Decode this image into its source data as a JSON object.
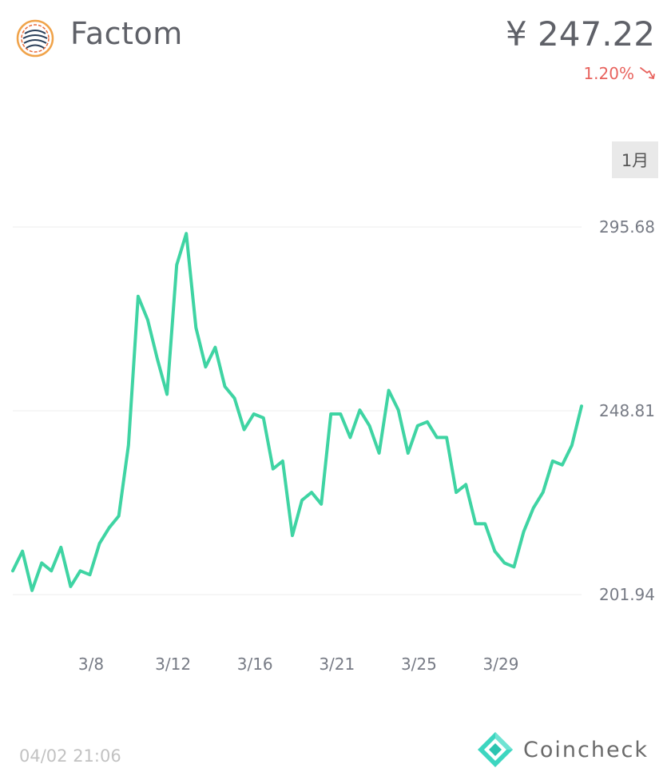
{
  "header": {
    "coin_name": "Factom",
    "price": "¥ 247.22",
    "change": "1.20%"
  },
  "controls": {
    "period_label": "1月"
  },
  "footer": {
    "timestamp": "04/02 21:06",
    "brand": "Coincheck"
  },
  "colors": {
    "line": "#3fd4a3",
    "negative": "#e8635e",
    "text": "#5f6168",
    "brand_teal": "#3dd6c0"
  },
  "icons": {
    "coin_logo": "factom-logo-icon",
    "trend": "arrow-down-right-icon",
    "brand_logo": "coincheck-logo-icon"
  },
  "chart_data": {
    "type": "line",
    "title": "",
    "xlabel": "",
    "ylabel": "",
    "ylim": [
      201.94,
      295.68
    ],
    "y_ticks": [
      "295.68",
      "248.81",
      "201.94"
    ],
    "x_ticks": [
      "3/8",
      "3/12",
      "3/16",
      "3/21",
      "3/25",
      "3/29"
    ],
    "grid": true,
    "series": [
      {
        "name": "",
        "x": [
          0,
          0.5,
          1,
          1.5,
          2,
          2.5,
          3,
          3.5,
          4,
          4.5,
          5,
          5.5,
          6,
          6.5,
          7,
          7.5,
          8,
          8.5,
          9,
          9.5,
          10,
          10.5,
          11,
          11.5,
          12,
          12.5,
          13,
          13.5,
          14,
          14.5,
          15,
          15.5,
          16,
          16.5,
          17,
          17.5,
          18,
          18.5,
          19,
          19.5,
          20,
          20.5,
          21,
          21.5,
          22,
          22.5,
          23,
          23.5,
          24,
          24.5,
          25,
          25.5,
          26,
          26.5,
          27,
          27.5,
          28,
          28.5,
          29,
          29.5
        ],
        "values": [
          208,
          213,
          203,
          210,
          208,
          214,
          204,
          208,
          207,
          215,
          219,
          222,
          240,
          278,
          272,
          262,
          253,
          286,
          294,
          270,
          260,
          265,
          255,
          252,
          244,
          248,
          247,
          234,
          236,
          217,
          226,
          228,
          225,
          248,
          248,
          242,
          249,
          245,
          238,
          254,
          249,
          238,
          245,
          246,
          242,
          242,
          228,
          230,
          220,
          220,
          213,
          210,
          209,
          218,
          224,
          228,
          236,
          235,
          240,
          250
        ]
      }
    ]
  }
}
